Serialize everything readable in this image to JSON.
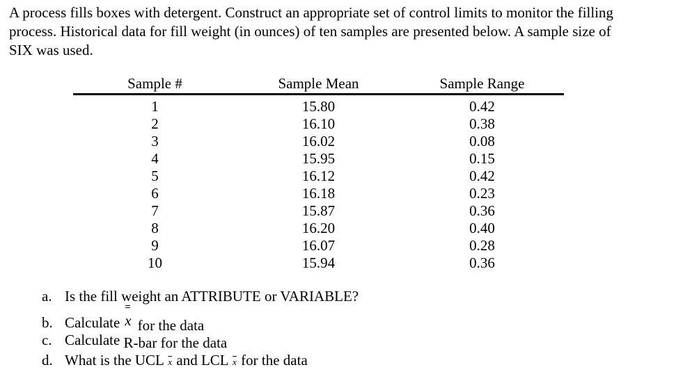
{
  "document": {
    "background": "#ffffff",
    "text_color": "#000000",
    "intro_lines": [
      "A process fills boxes with detergent. Construct an appropriate set of control limits to monitor the filling",
      "process. Historical data for fill weight (in ounces) of ten samples are presented below. A sample size of",
      "SIX was used."
    ],
    "table": {
      "columns": [
        "Sample #",
        "Sample Mean",
        "Sample Range"
      ],
      "rows": [
        {
          "sample": "1",
          "mean": "15.80",
          "range": "0.42"
        },
        {
          "sample": "2",
          "mean": "16.10",
          "range": "0.38"
        },
        {
          "sample": "3",
          "mean": "16.02",
          "range": "0.08"
        },
        {
          "sample": "4",
          "mean": "15.95",
          "range": "0.15"
        },
        {
          "sample": "5",
          "mean": "16.12",
          "range": "0.42"
        },
        {
          "sample": "6",
          "mean": "16.18",
          "range": "0.23"
        },
        {
          "sample": "7",
          "mean": "15.87",
          "range": "0.36"
        },
        {
          "sample": "8",
          "mean": "16.20",
          "range": "0.40"
        },
        {
          "sample": "9",
          "mean": "16.07",
          "range": "0.28"
        },
        {
          "sample": "10",
          "mean": "15.94",
          "range": "0.36"
        }
      ]
    },
    "questions": {
      "a": {
        "label": "a.",
        "text": "Is the fill weight an ATTRIBUTE or VARIABLE?"
      },
      "b": {
        "label": "b.",
        "prefix": "Calculate",
        "symbol_accent": "=",
        "symbol": "x",
        "suffix": "for the data"
      },
      "c": {
        "label": "c.",
        "prefix": "Calculate",
        "shifted_text": "R-bar for the data"
      },
      "d": {
        "label": "d.",
        "part1": "What is the UCL",
        "xbar1": "x",
        "part2": "and LCL",
        "xbar2": "x",
        "part3": "for the data"
      }
    }
  }
}
